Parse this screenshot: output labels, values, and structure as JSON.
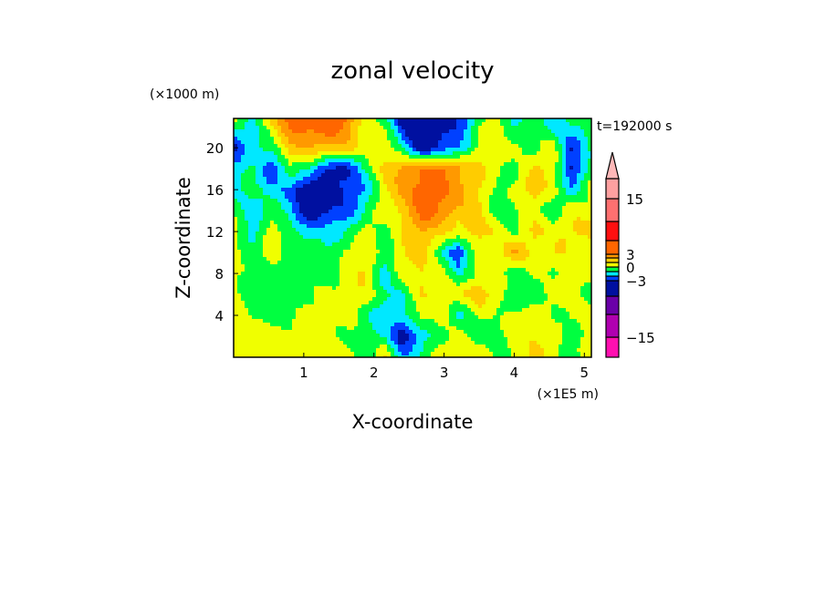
{
  "chart_data": {
    "type": "heatmap",
    "title": "zonal velocity",
    "xlabel": "X-coordinate",
    "ylabel": "Z-coordinate",
    "x_unit": "(×1E5 m)",
    "y_unit": "(×1000 m)",
    "time_label": "t=192000 s",
    "xlim": [
      0,
      5.1
    ],
    "ylim": [
      0,
      22.8
    ],
    "xticks": [
      {
        "v": 1,
        "label": "1"
      },
      {
        "v": 2,
        "label": "2"
      },
      {
        "v": 3,
        "label": "3"
      },
      {
        "v": 4,
        "label": "4"
      },
      {
        "v": 5,
        "label": "5"
      }
    ],
    "yticks": [
      {
        "v": 4,
        "label": "4"
      },
      {
        "v": 8,
        "label": "8"
      },
      {
        "v": 12,
        "label": "12"
      },
      {
        "v": 16,
        "label": "16"
      },
      {
        "v": 20,
        "label": "20"
      }
    ],
    "grid_x": [
      0,
      0.27,
      0.54,
      0.8,
      1.07,
      1.34,
      1.6,
      1.88,
      2.15,
      2.4,
      2.68,
      2.95,
      3.2,
      3.5,
      3.76,
      4.0,
      4.3,
      4.56,
      4.83,
      5.1
    ],
    "grid_z": [
      22.8,
      20,
      18,
      16,
      14,
      12,
      10,
      8,
      6,
      4,
      2,
      0
    ],
    "values": [
      [
        0.5,
        -1.5,
        1.5,
        3.5,
        4,
        5,
        3,
        0.5,
        -0.5,
        -4,
        -5,
        -4,
        -3,
        -0.5,
        0.5,
        -1.5,
        -0.5,
        -2,
        -0.5,
        -1
      ],
      [
        -3.5,
        -1.5,
        -0.5,
        1.5,
        2,
        2,
        1.5,
        0.5,
        0.5,
        -1,
        -4,
        -3,
        -2,
        0.5,
        0.5,
        0.5,
        -0.5,
        0.5,
        -3,
        -1
      ],
      [
        -2,
        -0.5,
        -3,
        -0.5,
        -0.5,
        -3.5,
        -3.5,
        -0.5,
        1,
        2.5,
        3,
        3,
        2.5,
        1,
        0.5,
        -0.5,
        1,
        1,
        -3.5,
        -0.5
      ],
      [
        -1.5,
        -0.5,
        -1.5,
        -2.5,
        -4,
        -3.5,
        -3,
        -2,
        0.5,
        2.5,
        3.5,
        3.5,
        2.5,
        1,
        -0.5,
        0.5,
        1.5,
        0.5,
        -2,
        0.5
      ],
      [
        -0.5,
        -1.5,
        -0.5,
        -1.5,
        -4,
        -3.5,
        -2.5,
        -1,
        0.5,
        1.5,
        3.5,
        3,
        2,
        1,
        -0.5,
        -0.5,
        0.5,
        -0.5,
        0.5,
        0.5
      ],
      [
        0.5,
        -1.5,
        0.5,
        -0.5,
        -1.5,
        -1.5,
        -1,
        0.5,
        -0.5,
        1,
        2,
        1.5,
        0.5,
        1.5,
        1,
        -0.5,
        1.5,
        0.5,
        1,
        1.5
      ],
      [
        0.5,
        -0.5,
        0.5,
        -0.5,
        -0.5,
        -1,
        0.5,
        0.5,
        -0.5,
        1,
        1.5,
        -0.5,
        -3,
        0.5,
        0.5,
        2,
        0.5,
        1,
        0.5,
        0.5
      ],
      [
        0.5,
        -0.5,
        -0.5,
        -0.5,
        -0.5,
        -0.5,
        0.5,
        1,
        -1.5,
        0.5,
        1,
        0.5,
        -1.5,
        0.5,
        0.5,
        -1,
        0.5,
        -0.5,
        1,
        0.5
      ],
      [
        0.5,
        -0.5,
        -0.5,
        -0.5,
        -0.5,
        0.5,
        0.5,
        0.5,
        -0.5,
        -1.5,
        1,
        1,
        0.5,
        2,
        0.5,
        -1,
        -0.5,
        0.5,
        0.5,
        -0.5
      ],
      [
        0.5,
        -0.5,
        -0.5,
        -0.5,
        0.5,
        0.5,
        0.5,
        -0.5,
        -2,
        -1.5,
        0.5,
        0.5,
        -1.5,
        0.5,
        -0.5,
        0.5,
        0.5,
        -0.5,
        0.5,
        0.5
      ],
      [
        0.5,
        0.5,
        1,
        0.5,
        0.5,
        0.5,
        -0.5,
        -0.5,
        -1,
        -4,
        -1.5,
        -0.5,
        0.5,
        -0.5,
        -0.5,
        0.5,
        1,
        0.5,
        -0.5,
        0.5
      ],
      [
        0.5,
        0.5,
        0.5,
        0.5,
        0.5,
        0.5,
        0.5,
        -0.5,
        1,
        -2,
        -0.5,
        0.5,
        0.5,
        0.5,
        -0.5,
        0.5,
        1,
        0.5,
        -0.5,
        0.5
      ]
    ],
    "levels": [
      -15,
      -9,
      -6,
      -3,
      -2,
      -1,
      0,
      1,
      2,
      3,
      6,
      9,
      15
    ],
    "colors": [
      "#ff10b0",
      "#b000b0",
      "#6a00a8",
      "#0010a0",
      "#0040ff",
      "#00e8ff",
      "#00ff40",
      "#f0ff00",
      "#ffcc00",
      "#ff9900",
      "#ff6600",
      "#ff1010",
      "#ff7070",
      "#ffa0a0"
    ],
    "extend_color": "#ffb8b8",
    "colorbar_labels": [
      {
        "v": 15,
        "label": "15"
      },
      {
        "v": 3,
        "label": "3"
      },
      {
        "v": 0,
        "label": "0"
      },
      {
        "v": -3,
        "label": "−3"
      },
      {
        "v": -15,
        "label": "−15"
      }
    ]
  }
}
